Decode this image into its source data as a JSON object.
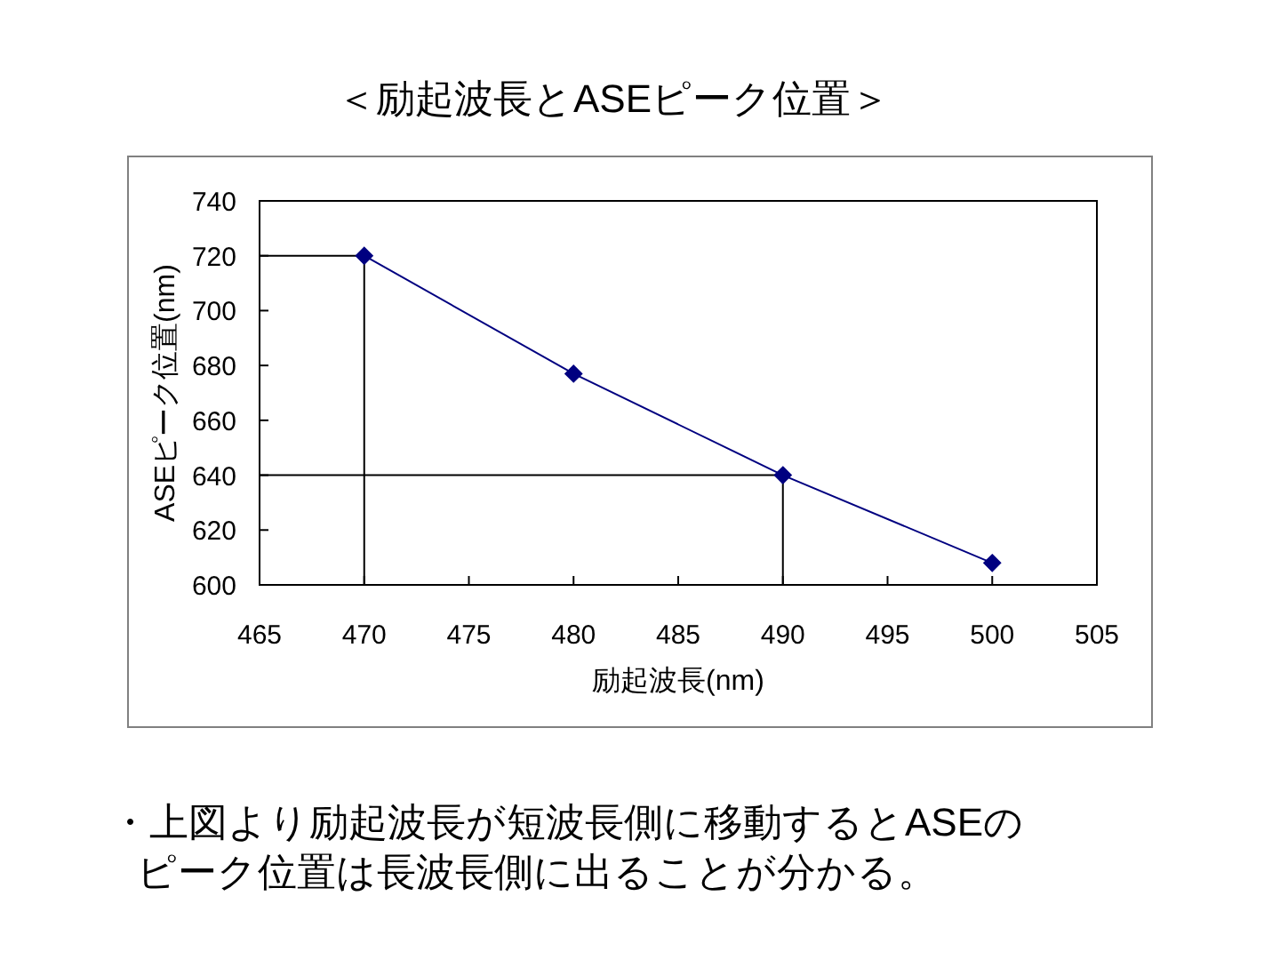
{
  "chart_data": {
    "type": "line",
    "title": "＜励起波長とASEピーク位置＞",
    "xlabel": "励起波長(nm)",
    "ylabel": "ASEピーク位置(nm)",
    "x": [
      470,
      480,
      490,
      500
    ],
    "series": [
      {
        "color": "#000080",
        "values": [
          720,
          677,
          640,
          608
        ]
      },
      {
        "x": [
          465,
          470,
          470
        ],
        "values": [
          720,
          720,
          600
        ],
        "color": "#000000",
        "marker": "none"
      },
      {
        "x": [
          465,
          490,
          490
        ],
        "values": [
          640,
          640,
          600
        ],
        "color": "#000000",
        "marker": "none"
      }
    ],
    "marker": "diamond",
    "xlim": [
      465,
      505
    ],
    "ylim": [
      600,
      740
    ],
    "xticks": [
      465,
      470,
      475,
      480,
      485,
      490,
      495,
      500,
      505
    ],
    "yticks": [
      600,
      620,
      640,
      660,
      680,
      700,
      720,
      740
    ],
    "annotations": [
      "・上図より励起波長が短波長側に移動するとASEのピーク位置は長波長側に出ることが分かる。"
    ]
  }
}
